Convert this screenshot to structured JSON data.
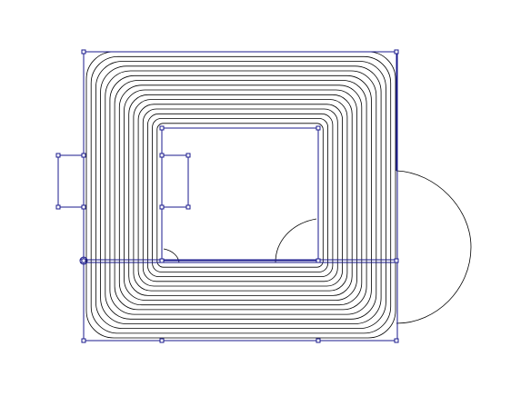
{
  "colors": {
    "background": "#ffffff",
    "contour_lines": "#000000",
    "selection_outline": "#1a1a8c"
  },
  "drawing": {
    "contour_count": 16
  }
}
